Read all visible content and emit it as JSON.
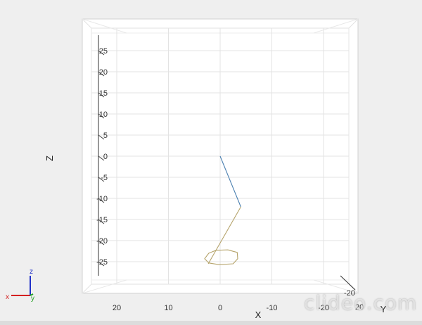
{
  "chart_data": {
    "type": "line",
    "title": "",
    "xlabel": "X",
    "ylabel": "Z",
    "ylabel_depth": "Y",
    "x_ticks": [
      "20",
      "10",
      "0",
      "-10",
      "-20"
    ],
    "z_ticks": [
      "25",
      "20",
      "15",
      "10",
      "5",
      "0",
      "-5",
      "-10",
      "-15",
      "-20",
      "-25"
    ],
    "y_ticks": [
      "-20",
      "20"
    ],
    "xlim": [
      26,
      -26
    ],
    "zlim": [
      -28,
      28
    ],
    "grid": true,
    "series": [
      {
        "color": "#4a7fb0",
        "x": [
          0,
          -4
        ],
        "z": [
          0,
          -12
        ]
      },
      {
        "color": "#b5a36a",
        "x": [
          -4,
          2.3
        ],
        "z": [
          -12,
          -25.5
        ]
      },
      {
        "color": "#b5a36a",
        "closed": true,
        "x": [
          0.8,
          -1.5,
          -3.3,
          -3.4,
          -2.5,
          0.2,
          2.2,
          3.0,
          2.2,
          0.8
        ],
        "z": [
          -22.3,
          -22.2,
          -22.8,
          -24.3,
          -25.5,
          -25.7,
          -25.3,
          -24.3,
          -23.0,
          -22.3
        ]
      }
    ],
    "triad": {
      "x_label": "x",
      "y_label": "y",
      "z_label": "z",
      "x_color": "#d42020",
      "y_color": "#20a020",
      "z_color": "#2030c8"
    }
  },
  "watermark": "clideo.com"
}
